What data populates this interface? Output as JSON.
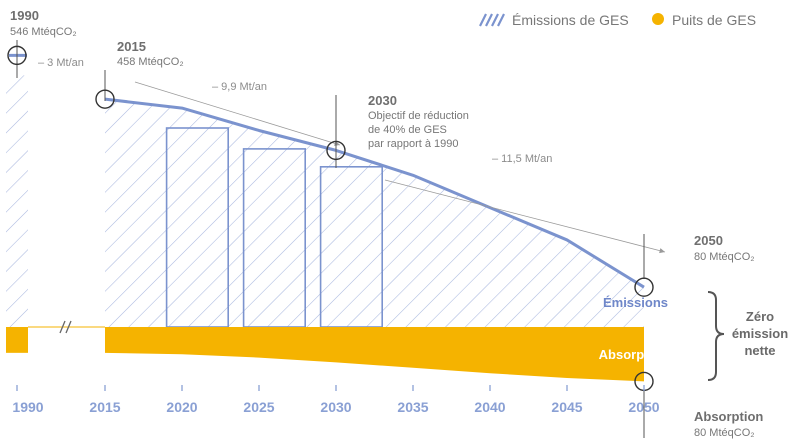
{
  "chart_data": {
    "type": "area",
    "legend": [
      {
        "name": "Émissions de GES",
        "color": "#7b93ce",
        "style": "hatched"
      },
      {
        "name": "Puits de GES",
        "color": "#f5b300",
        "style": "solid"
      }
    ],
    "legend_placement": "top-right",
    "x_ticks": [
      "1990",
      "2015",
      "2020",
      "2025",
      "2030",
      "2035",
      "2040",
      "2045",
      "2050"
    ],
    "series": [
      {
        "name": "Émissions",
        "color": "#7b93ce",
        "x": [
          1990,
          2015,
          2020,
          2025,
          2030,
          2035,
          2040,
          2045,
          2050
        ],
        "values": [
          546,
          458,
          440,
          395,
          355,
          305,
          240,
          175,
          80
        ]
      },
      {
        "name": "Absorption",
        "color": "#f5b300",
        "x": [
          1990,
          2015,
          2020,
          2025,
          2030,
          2035,
          2040,
          2045,
          2050
        ],
        "values": [
          -38,
          -38,
          -40,
          -45,
          -52,
          -60,
          -68,
          -75,
          -80
        ]
      }
    ],
    "budget_periods": [
      {
        "start": 2019,
        "end": 2023,
        "value": 400
      },
      {
        "start": 2024,
        "end": 2028,
        "value": 358
      },
      {
        "start": 2029,
        "end": 2033,
        "value": 322
      }
    ],
    "annotations": {
      "p1990": {
        "year": "1990",
        "value": "546 MtéqCO₂"
      },
      "p2015": {
        "year": "2015",
        "value": "458 MtéqCO₂"
      },
      "p2030": {
        "year": "2030",
        "lines": [
          "Objectif de réduction",
          "de 40% de GES",
          "par rapport à 1990"
        ]
      },
      "p2050": {
        "year": "2050",
        "value": "80 MtéqCO₂"
      },
      "absorption2050": {
        "label": "Absorption",
        "value": "80 MtéqCO₂"
      },
      "rate1": "– 3 Mt/an",
      "rate2": "– 9,9 Mt/an",
      "rate3": "– 11,5 Mt/an",
      "series_label_emissions": "Émissions",
      "series_label_absorption": "Absorption",
      "zero_label": [
        "Zéro",
        "émission",
        "nette"
      ]
    }
  }
}
